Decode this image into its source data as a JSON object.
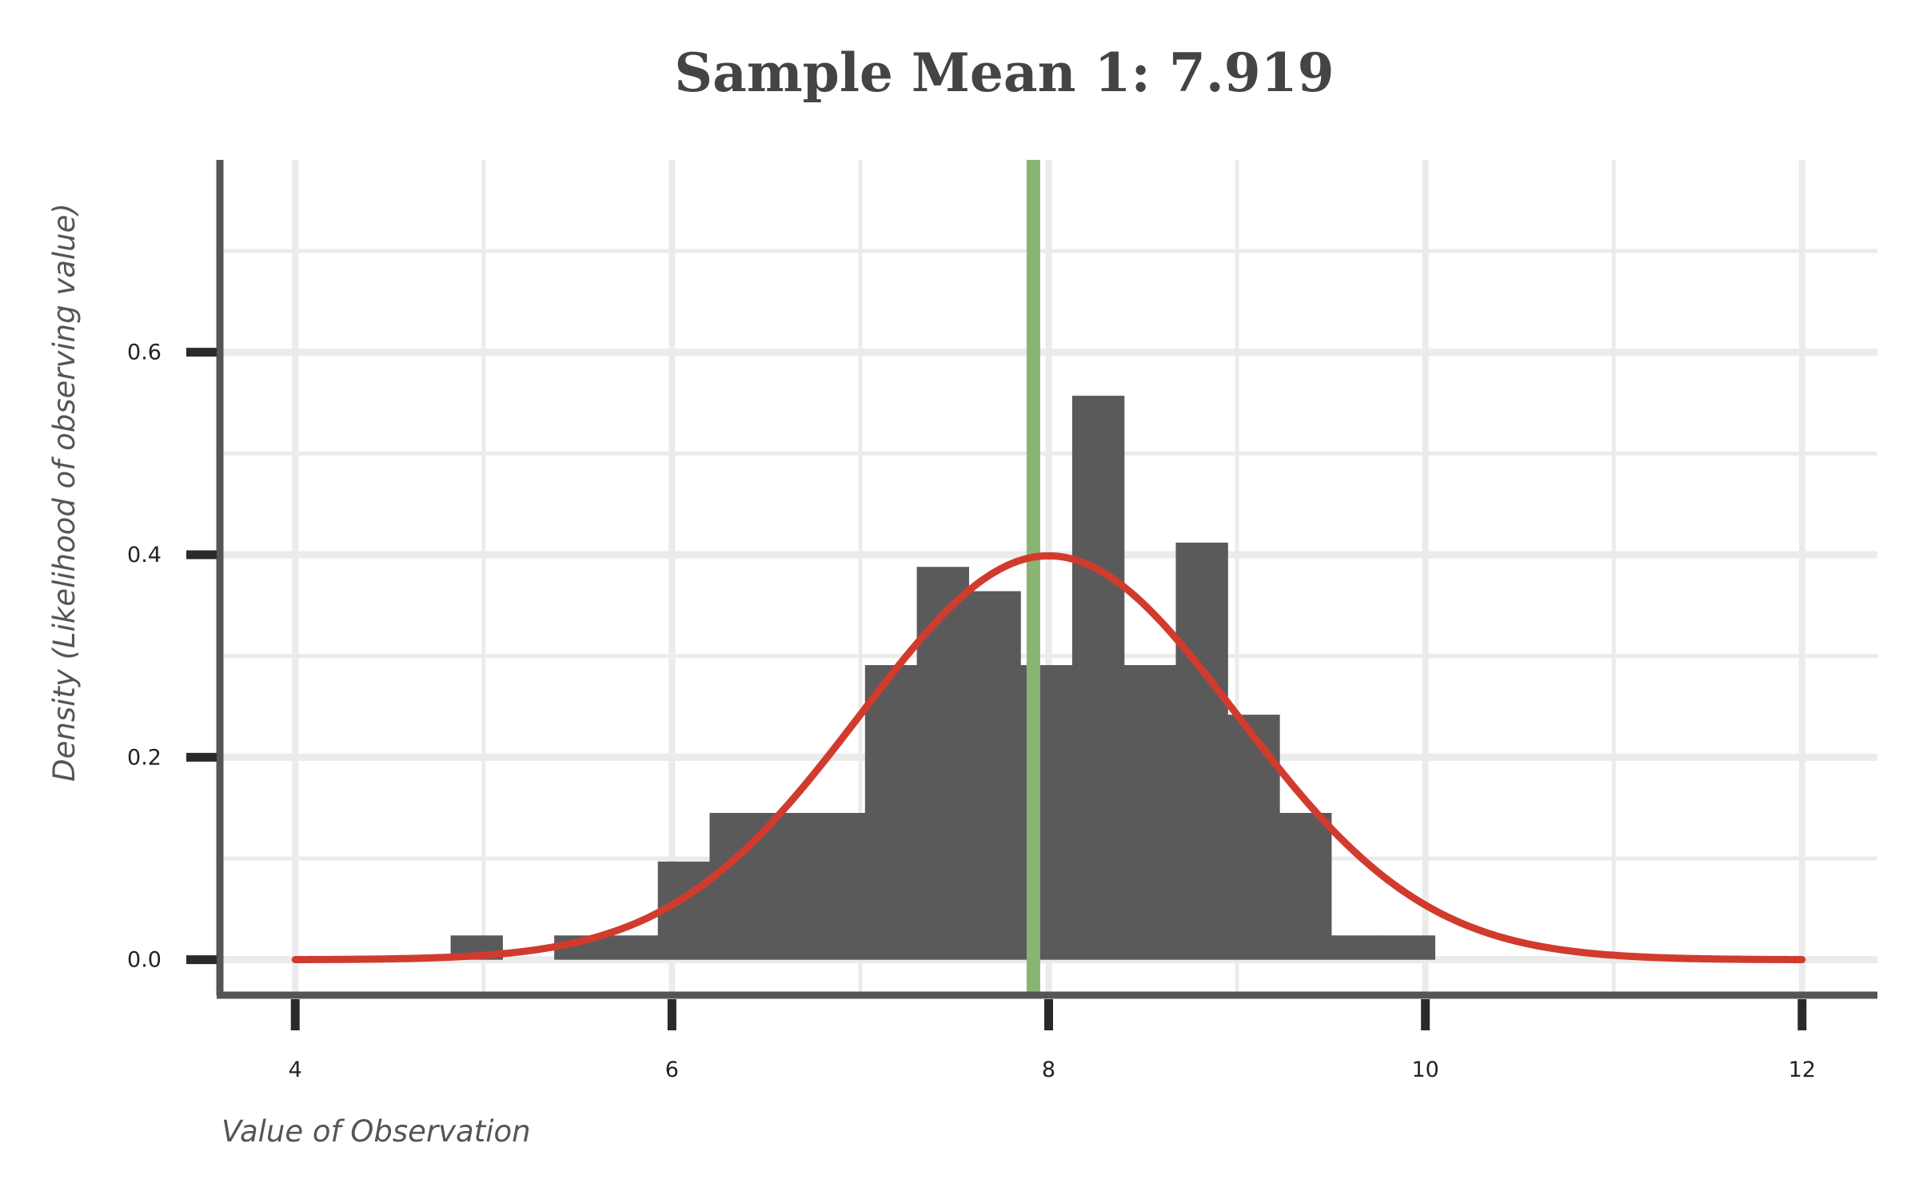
{
  "chart_data": {
    "type": "bar",
    "title": "Sample Mean 1: 7.919",
    "xlabel": "Value of Observation",
    "ylabel": "Density (Likelihood of observing value)",
    "xlim": [
      3.6,
      12.4
    ],
    "ylim": [
      -0.035,
      0.79
    ],
    "x_ticks": [
      "4",
      "6",
      "8",
      "10",
      "12"
    ],
    "y_ticks": [
      "0.0",
      "0.2",
      "0.4",
      "0.6"
    ],
    "x_grid_major": [
      4,
      6,
      8,
      10,
      12
    ],
    "x_grid_minor": [
      5,
      7,
      9,
      11
    ],
    "y_grid_major": [
      0.0,
      0.2,
      0.4,
      0.6
    ],
    "y_grid_minor": [
      0.1,
      0.3,
      0.5,
      0.7
    ],
    "grid": true,
    "histogram": {
      "name": "",
      "bin_width": 0.275,
      "bins": [
        {
          "x0": 4.825,
          "x1": 5.1,
          "density": 0.024
        },
        {
          "x0": 5.375,
          "x1": 5.65,
          "density": 0.024
        },
        {
          "x0": 5.65,
          "x1": 5.925,
          "density": 0.024
        },
        {
          "x0": 5.925,
          "x1": 6.2,
          "density": 0.097
        },
        {
          "x0": 6.2,
          "x1": 6.475,
          "density": 0.145
        },
        {
          "x0": 6.475,
          "x1": 6.75,
          "density": 0.145
        },
        {
          "x0": 6.75,
          "x1": 7.025,
          "density": 0.145
        },
        {
          "x0": 7.025,
          "x1": 7.3,
          "density": 0.291
        },
        {
          "x0": 7.3,
          "x1": 7.575,
          "density": 0.388
        },
        {
          "x0": 7.575,
          "x1": 7.85,
          "density": 0.364
        },
        {
          "x0": 7.85,
          "x1": 8.125,
          "density": 0.291
        },
        {
          "x0": 8.125,
          "x1": 8.4,
          "density": 0.557
        },
        {
          "x0": 8.4,
          "x1": 8.675,
          "density": 0.291
        },
        {
          "x0": 8.675,
          "x1": 8.95,
          "density": 0.412
        },
        {
          "x0": 8.95,
          "x1": 9.225,
          "density": 0.242
        },
        {
          "x0": 9.225,
          "x1": 9.5,
          "density": 0.145
        },
        {
          "x0": 9.5,
          "x1": 9.775,
          "density": 0.024
        },
        {
          "x0": 9.775,
          "x1": 10.05,
          "density": 0.024
        }
      ]
    },
    "density_curve": {
      "mean": 8,
      "sd": 1,
      "x_range": [
        4,
        12
      ]
    },
    "mean_line": {
      "x": 7.919
    },
    "colors": {
      "bars": "#5a5a5a",
      "curve": "#d13b2e",
      "mean_line": "#8ab473",
      "grid": "#ebebeb",
      "axis": "#555555",
      "ticks": "#2a2a2a"
    }
  }
}
